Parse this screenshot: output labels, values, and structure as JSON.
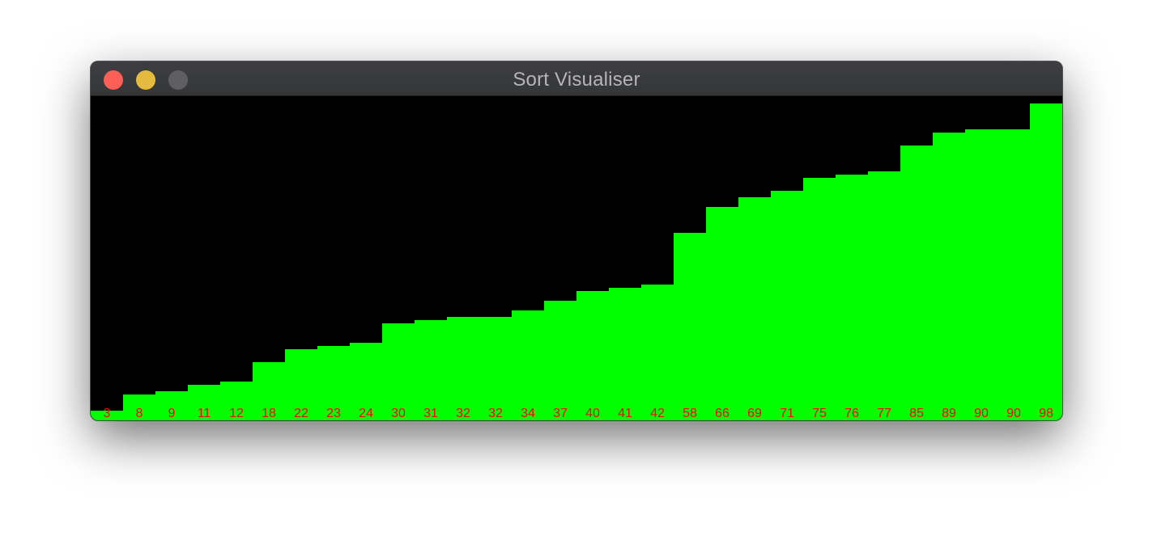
{
  "window": {
    "title": "Sort Visualiser",
    "buttons": {
      "close_color": "#fe5f57",
      "minimize_color": "#e4bb3f",
      "zoom_color": "#5f5f61"
    }
  },
  "colors": {
    "background": "#000000",
    "bar": "#00ff00",
    "label": "#ff0000"
  },
  "chart_data": {
    "type": "bar",
    "values": [
      3,
      8,
      9,
      11,
      12,
      18,
      22,
      23,
      24,
      30,
      31,
      32,
      32,
      34,
      37,
      40,
      41,
      42,
      58,
      66,
      69,
      71,
      75,
      76,
      77,
      85,
      89,
      90,
      90,
      98
    ],
    "ylim": [
      0,
      100
    ],
    "grid": false
  }
}
